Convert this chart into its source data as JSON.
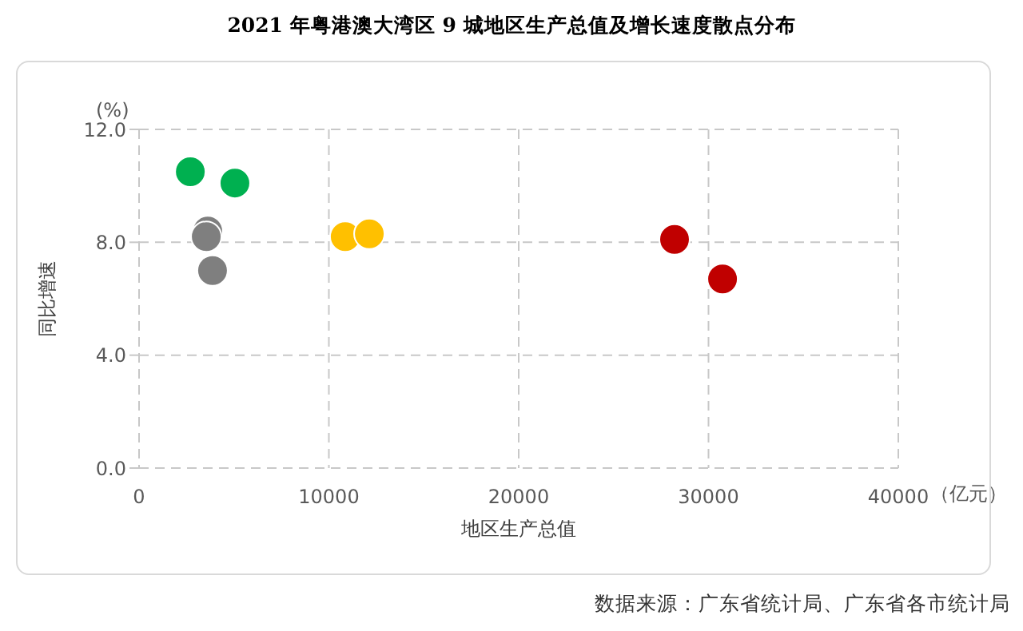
{
  "chart_data": {
    "type": "scatter",
    "title": "2021 年粤港澳大湾区 9 城地区生产总值及增长速度散点分布",
    "xlabel": "地区生产总值",
    "ylabel": "同比增速",
    "annotations": [
      "(%)",
      "（亿元）",
      "数据来源：广东省统计局、广东省各市统计局"
    ],
    "series": [
      {
        "color": "#00b050",
        "x": [
          2700,
          5050
        ],
        "values": [
          10.5,
          10.1
        ]
      },
      {
        "color": "#7f7f7f",
        "x": [
          3620,
          3540,
          3870
        ],
        "values": [
          8.4,
          8.2,
          7.0
        ]
      },
      {
        "color": "#ffc000",
        "x": [
          10860,
          12130
        ],
        "values": [
          8.2,
          8.3
        ]
      },
      {
        "color": "#c00000",
        "x": [
          28210,
          30740
        ],
        "values": [
          8.1,
          6.7
        ]
      }
    ],
    "xlim": [
      0,
      40000
    ],
    "xticks": [
      0,
      10000,
      20000,
      30000,
      40000
    ],
    "ylim": [
      0,
      12
    ],
    "yticks": [
      {
        "value": 0,
        "label": "0.0"
      },
      {
        "value": 4,
        "label": "4.0"
      },
      {
        "value": 8,
        "label": "8.0"
      },
      {
        "value": 12,
        "label": "12.0"
      }
    ],
    "grid": true,
    "marker": "circle",
    "legend": false
  }
}
